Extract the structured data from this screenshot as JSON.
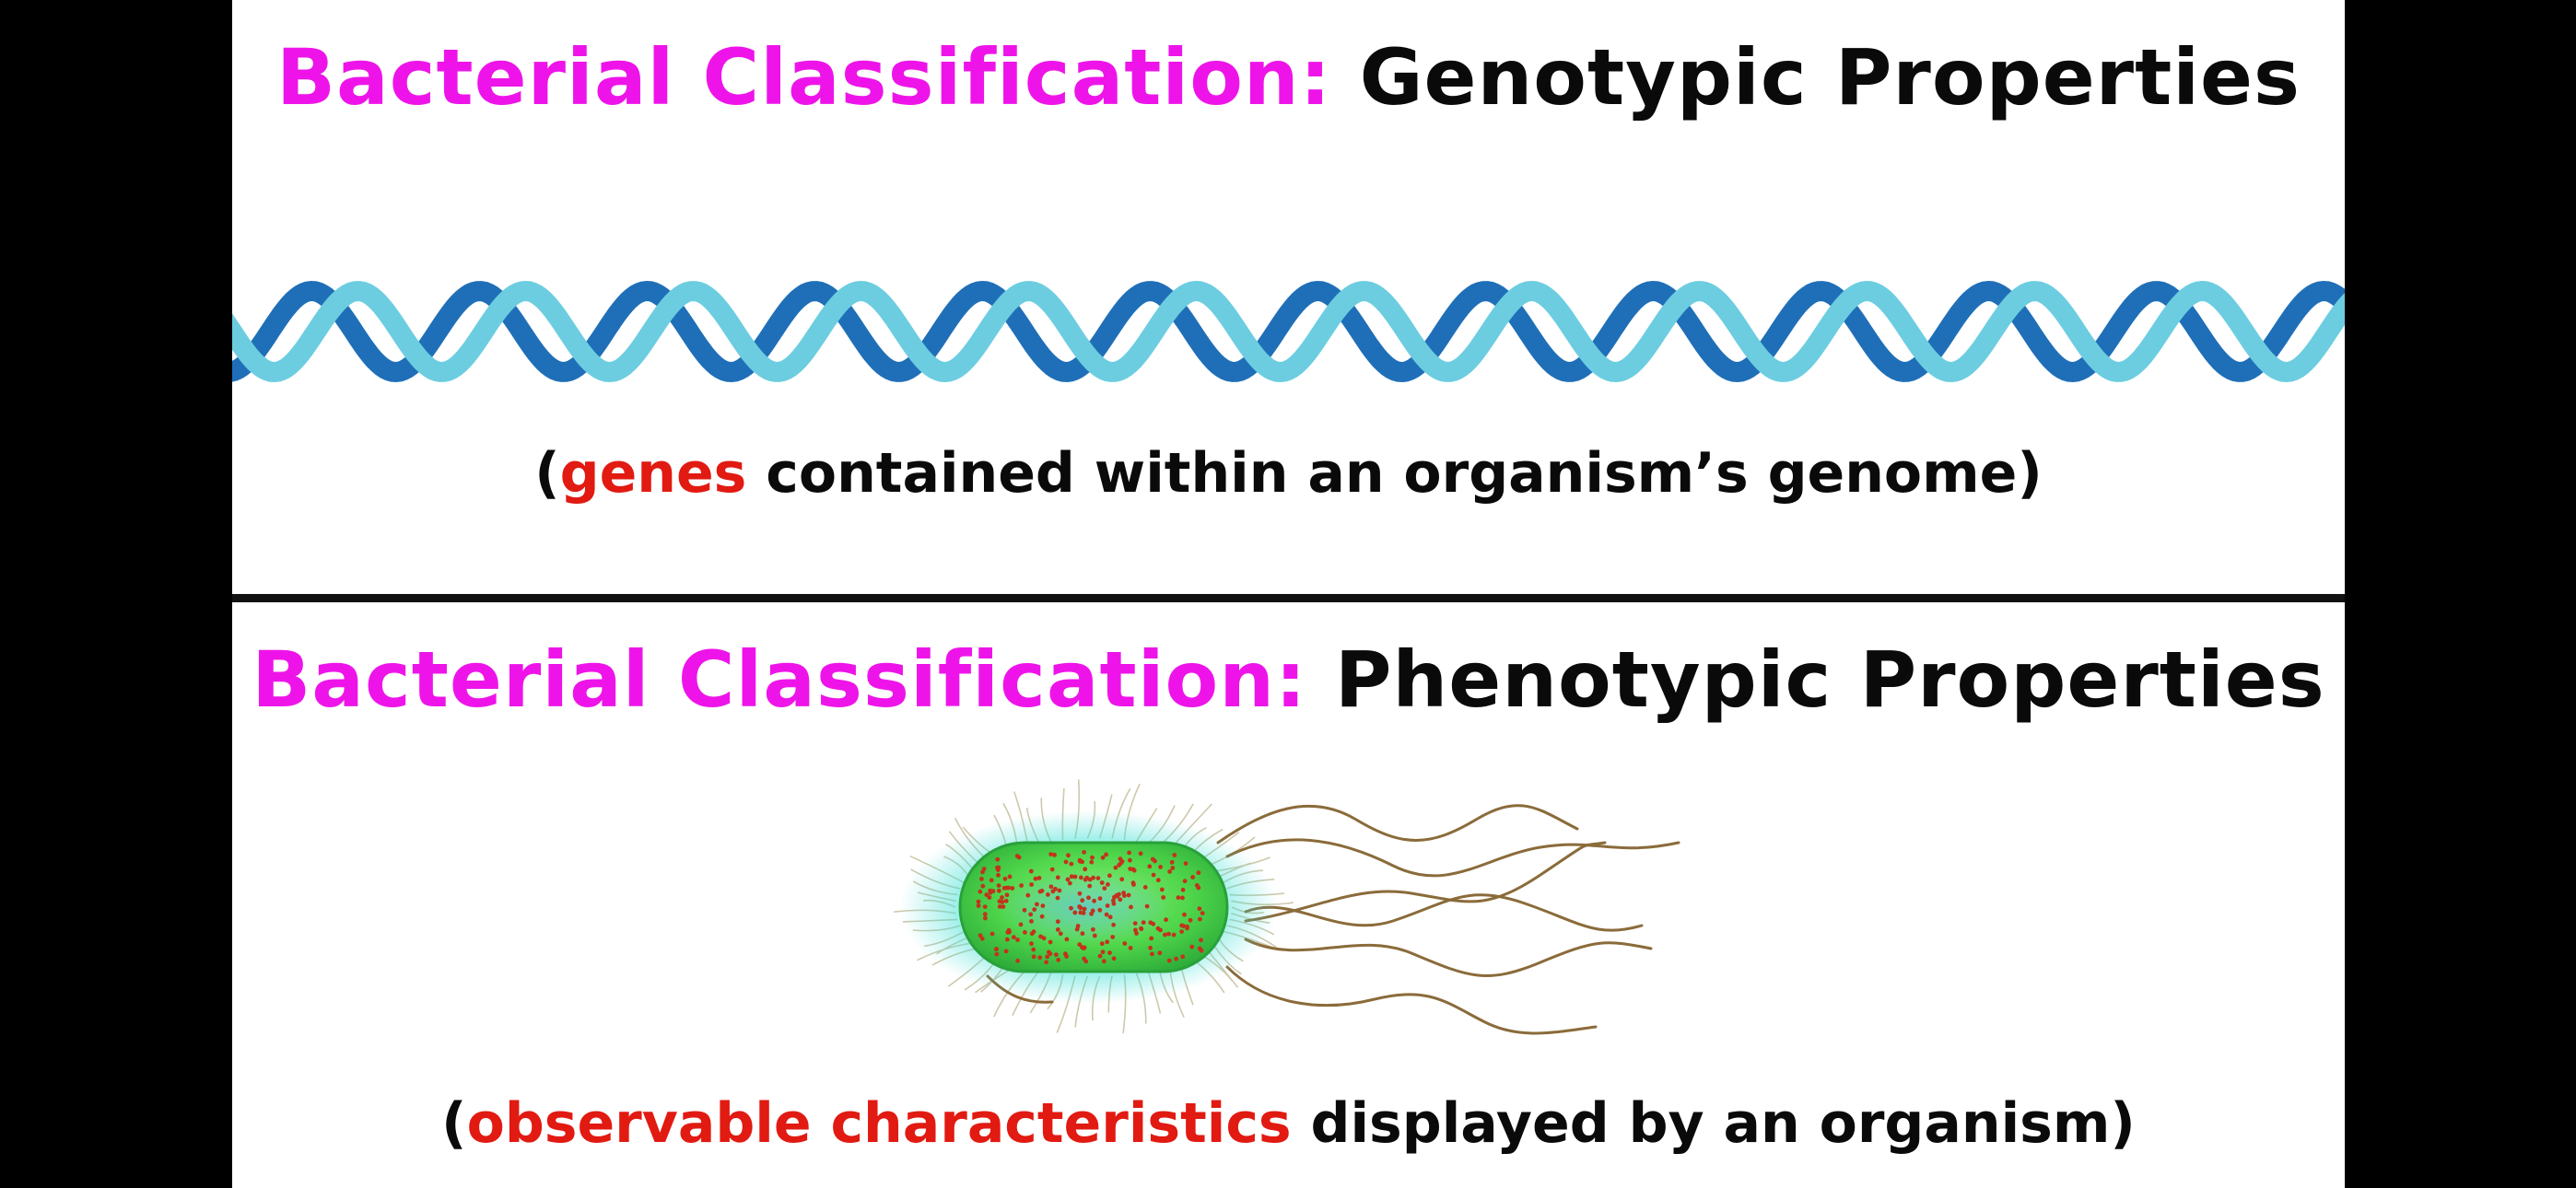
{
  "top_section": {
    "title_prefix": "Bacterial Classification:",
    "title_suffix": " Genotypic Properties",
    "caption_open": "(",
    "caption_highlight": "genes",
    "caption_rest": " contained within an organism’s genome)"
  },
  "bottom_section": {
    "title_prefix": "Bacterial Classification:",
    "title_suffix": " Phenotypic Properties",
    "caption_open": "(",
    "caption_highlight": "observable characteristics",
    "caption_rest": " displayed by an organism)"
  },
  "colors": {
    "title_prefix": "#ee14e9",
    "title_suffix": "#0a0a0a",
    "caption_highlight": "#e11a12",
    "dna_strand_dark": "#1f6fb8",
    "dna_strand_light": "#6ccde0",
    "bacterium_body": "#4fd64b",
    "bacterium_glow": "#3fe0d5",
    "flagella": "#8a6b3a"
  },
  "icons": {
    "dna": "dna-double-helix-illustration",
    "bacterium": "flagellated-bacterium-illustration"
  }
}
